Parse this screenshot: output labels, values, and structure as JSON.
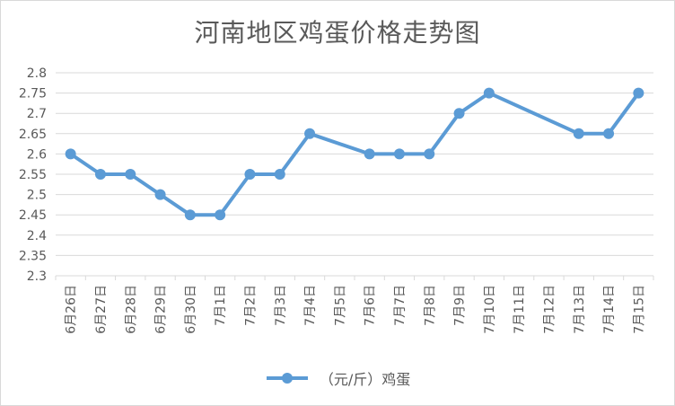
{
  "chart_data": {
    "type": "line",
    "title": "河南地区鸡蛋价格走势图",
    "categories": [
      "6月26日",
      "6月27日",
      "6月28日",
      "6月29日",
      "6月30日",
      "7月1日",
      "7月2日",
      "7月3日",
      "7月4日",
      "7月5日",
      "7月6日",
      "7月7日",
      "7月8日",
      "7月9日",
      "7月10日",
      "7月11日",
      "7月12日",
      "7月13日",
      "7月14日",
      "7月15日"
    ],
    "series": [
      {
        "name": "（元/斤）鸡蛋",
        "values": [
          2.6,
          2.55,
          2.55,
          2.5,
          2.45,
          2.45,
          2.55,
          2.55,
          2.65,
          null,
          2.6,
          2.6,
          2.6,
          2.7,
          2.75,
          null,
          null,
          2.65,
          2.65,
          2.75
        ]
      }
    ],
    "yticks": [
      "2.3",
      "2.35",
      "2.4",
      "2.45",
      "2.5",
      "2.55",
      "2.6",
      "2.65",
      "2.7",
      "2.75",
      "2.8"
    ],
    "ylim": [
      2.3,
      2.8
    ],
    "grid": true,
    "legend": "bottom",
    "colors": {
      "line": "#5b9bd5",
      "grid": "#d9d9d9",
      "text": "#595959"
    }
  }
}
